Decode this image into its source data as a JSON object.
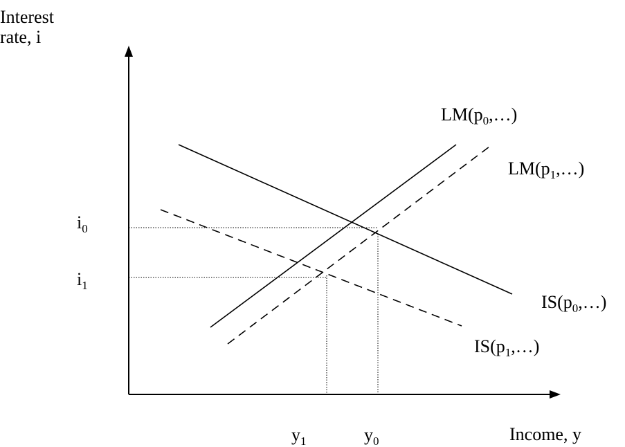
{
  "y_axis_label": {
    "line1": "Interest",
    "line2": "rate, i"
  },
  "x_axis_label": "Income, y",
  "curves": {
    "lm0": {
      "pre": "LM(p",
      "sub": "0",
      "post": ",…)"
    },
    "lm1": {
      "pre": "LM(p",
      "sub": "1",
      "post": ",…)"
    },
    "is0": {
      "pre": "IS(p",
      "sub": "0",
      "post": ",…)"
    },
    "is1": {
      "pre": "IS(p",
      "sub": "1",
      "post": ",…)"
    }
  },
  "interest_levels": {
    "i0": {
      "base": "i",
      "sub": "0"
    },
    "i1": {
      "base": "i",
      "sub": "1"
    }
  },
  "income_levels": {
    "y0": {
      "base": "y",
      "sub": "0"
    },
    "y1": {
      "base": "y",
      "sub": "1"
    }
  }
}
